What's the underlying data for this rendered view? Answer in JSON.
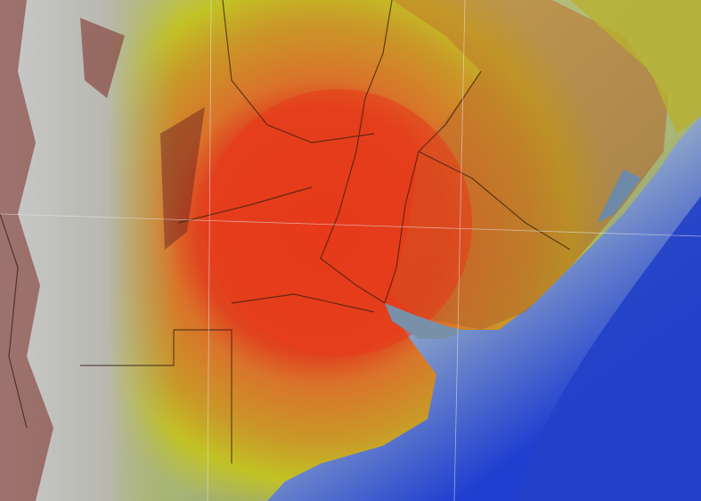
{
  "map": {
    "colors": {
      "deep_ocean": "#1f3fd0",
      "shelf": "#8fa6c8",
      "shallow": "#b9c3cf",
      "mountains": "#d8d8d8",
      "mountain_shade": "#7a2a22",
      "heat_low": "#c8c820",
      "heat_mid": "#d9782a",
      "heat_high": "#e0401e",
      "terrain_brown": "#a85a28",
      "border": "#3a2010",
      "graticule": "#e8e8e8"
    }
  }
}
